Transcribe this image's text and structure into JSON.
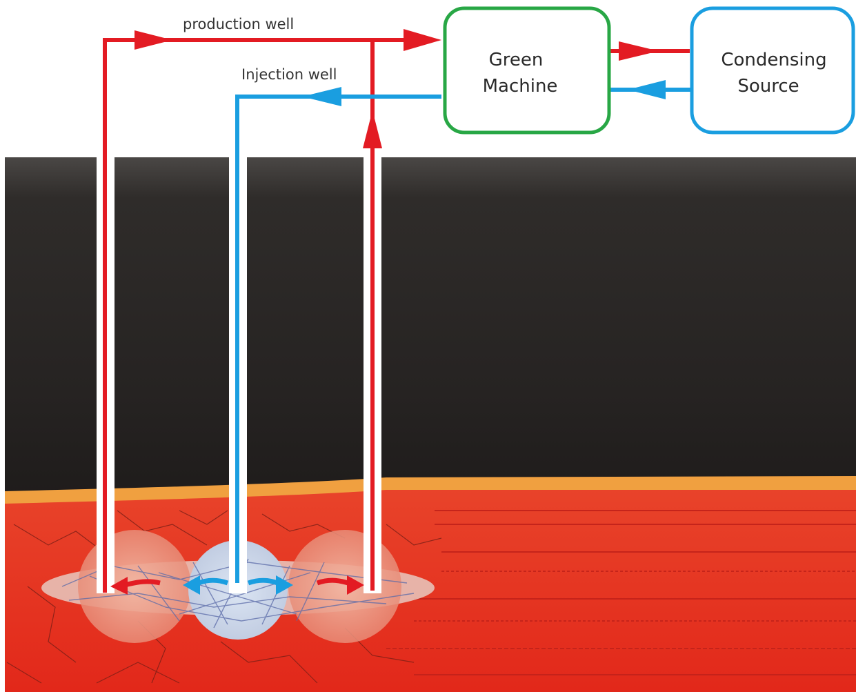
{
  "labels": {
    "production_well": "production well",
    "injection_well": "Injection well",
    "green_machine": [
      "Green",
      "Machine"
    ],
    "condensing_source": [
      "Condensing",
      "Source"
    ]
  },
  "colors": {
    "hot_flow": "#e31b23",
    "cold_flow": "#1a9ee0",
    "green_machine_border": "#28a745",
    "condensing_border": "#1a9ee0",
    "rock_dark": "#2a2624",
    "reservoir": "#e33a1e",
    "cap_layer": "#f0a040"
  },
  "icons": {
    "flow_arrow": "arrow-icon"
  }
}
